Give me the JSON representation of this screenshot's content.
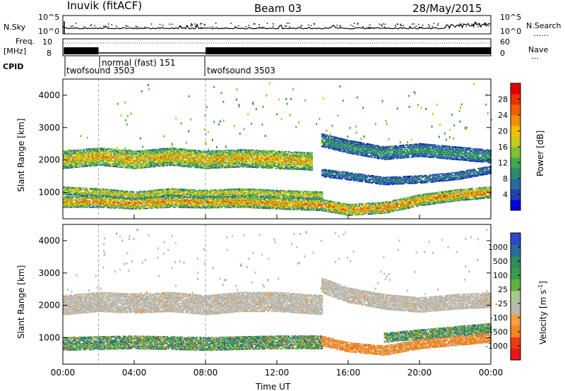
{
  "header": {
    "station": "Inuvik (fitACF)",
    "beam": "Beam 03",
    "date": "28/May/2015"
  },
  "panels": {
    "nsky": {
      "label": "N.Sky",
      "ticks_left": [
        "10^5",
        "10^0"
      ],
      "ticks_right": [
        "10^5",
        "10^0"
      ],
      "right_label": "N.Search"
    },
    "freq": {
      "label_line1": "Freq.",
      "label_line2": "[MHz]",
      "ticks_left": [
        "10",
        "8"
      ],
      "ticks_right": [
        "60",
        "0"
      ],
      "right_label": "Nave"
    },
    "cpid": {
      "label": "CPID",
      "entries": [
        "twofsound 3503",
        "normal (fast) 151",
        "twofsound 3503"
      ]
    }
  },
  "chart_data": [
    {
      "type": "heatmap",
      "title": "",
      "xlabel": "",
      "ylabel": "Slant Range [km]",
      "ylim": [
        180,
        4500
      ],
      "yticks": [
        "1000",
        "2000",
        "3000",
        "4000"
      ],
      "colorbar": {
        "label": "Power [dB]",
        "ticks": [
          "28",
          "24",
          "20",
          "16",
          "12",
          "8",
          "4"
        ],
        "range": [
          0,
          30
        ]
      },
      "layers": [
        {
          "x": [
            "00:00",
            "02:00",
            "04:00",
            "06:00",
            "08:00",
            "10:00",
            "12:00",
            "14:30",
            "16:00",
            "18:00",
            "20:00",
            "22:00",
            "24:00"
          ],
          "center_km": [
            700,
            700,
            650,
            700,
            680,
            700,
            650,
            600,
            450,
            520,
            750,
            900,
            1000
          ],
          "width_km": 350,
          "value": 22
        },
        {
          "x": [
            "00:00",
            "02:00",
            "04:00",
            "06:00",
            "08:00",
            "10:00",
            "12:00",
            "14:30"
          ],
          "center_km": [
            1050,
            1000,
            900,
            1000,
            950,
            1000,
            950,
            900
          ],
          "width_km": 250,
          "value": 18
        },
        {
          "x": [
            "00:00",
            "02:00",
            "04:00",
            "06:00",
            "08:00",
            "10:00",
            "12:00",
            "14:00"
          ],
          "center_km": [
            2000,
            2100,
            2000,
            2100,
            2000,
            2050,
            2000,
            1950
          ],
          "width_km": 550,
          "value": 20
        },
        {
          "x": [
            "14:30",
            "16:00",
            "18:00",
            "20:00",
            "22:00",
            "24:00"
          ],
          "center_km": [
            1600,
            1500,
            1350,
            1400,
            1500,
            1700
          ],
          "width_km": 250,
          "value": 8
        },
        {
          "x": [
            "14:30",
            "16:00",
            "18:00",
            "20:00",
            "22:00",
            "24:00"
          ],
          "center_km": [
            2600,
            2400,
            2200,
            2300,
            2200,
            2100
          ],
          "width_km": 400,
          "value": 10
        }
      ]
    },
    {
      "type": "heatmap",
      "title": "",
      "xlabel": "Time UT",
      "ylabel": "Slant Range [km]",
      "ylim": [
        180,
        4500
      ],
      "yticks": [
        "1000",
        "2000",
        "3000",
        "4000"
      ],
      "xticks": [
        "00:00",
        "04:00",
        "08:00",
        "12:00",
        "16:00",
        "20:00",
        "00:00"
      ],
      "xlim_hours": [
        0,
        24
      ],
      "colorbar": {
        "label": "Velocity [m s^-1]",
        "ticks": [
          "1000",
          "500",
          "100",
          "25",
          "-25",
          "-100",
          "-500",
          "-1000"
        ]
      },
      "layers": [
        {
          "x": [
            "00:00",
            "04:00",
            "08:00",
            "12:00",
            "14:30"
          ],
          "center_km": [
            800,
            850,
            800,
            850,
            850
          ],
          "width_km": 400,
          "value": 150,
          "class": "green"
        },
        {
          "x": [
            "00:00",
            "02:00",
            "04:00",
            "06:00",
            "08:00",
            "10:00",
            "12:00",
            "14:30"
          ],
          "center_km": [
            2000,
            2100,
            2050,
            2100,
            2000,
            2100,
            2100,
            2000
          ],
          "width_km": 600,
          "value": 0,
          "class": "gray"
        },
        {
          "x": [
            "14:30",
            "16:00",
            "18:00",
            "20:00",
            "22:00",
            "24:00"
          ],
          "center_km": [
            900,
            700,
            600,
            800,
            900,
            1000
          ],
          "width_km": 300,
          "value": -120,
          "class": "orange"
        },
        {
          "x": [
            "18:00",
            "20:00",
            "22:00",
            "24:00"
          ],
          "center_km": [
            1000,
            1100,
            1200,
            1300
          ],
          "width_km": 300,
          "value": 150,
          "class": "green"
        },
        {
          "x": [
            "14:30",
            "16:00",
            "18:00",
            "20:00",
            "22:00",
            "24:00"
          ],
          "center_km": [
            2600,
            2300,
            2100,
            2000,
            2100,
            2150
          ],
          "width_km": 450,
          "value": 0,
          "class": "gray"
        }
      ]
    }
  ],
  "colors": {
    "power": [
      "#0000e0",
      "#2040b0",
      "#2a6a9a",
      "#2f8a6a",
      "#3faa4f",
      "#7fc030",
      "#c8c820",
      "#f0c000",
      "#f09000",
      "#f06000",
      "#ec3000",
      "#e00000"
    ],
    "vel_blue": "#2a48c8",
    "vel_darkgreen": "#2f8c5a",
    "vel_green": "#60b040",
    "vel_gray": "#b8b8b0",
    "vel_orange": "#f08a20",
    "vel_red": "#e81818",
    "line": "#000000"
  },
  "x_bottom_label": "Time UT"
}
